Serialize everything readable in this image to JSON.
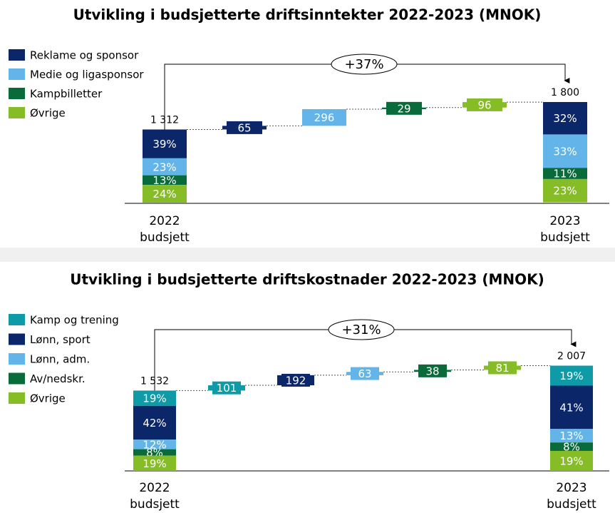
{
  "chart_data": [
    {
      "type": "waterfall",
      "title": "Utvikling i budsjetterte driftsinntekter 2022-2023 (MNOK)",
      "change_label": "+37%",
      "series": [
        {
          "name": "Reklame og sponsor",
          "color": "#0c2769",
          "step": 65
        },
        {
          "name": "Medie og ligasponsor",
          "color": "#63b4e8",
          "step": 296
        },
        {
          "name": "Kampbilletter",
          "color": "#0a6b3a",
          "step": 29
        },
        {
          "name": "Øvrige",
          "color": "#86bc25",
          "step": 96
        }
      ],
      "start": {
        "year": "2022",
        "label": "budsjett",
        "value": 1312,
        "value_label": "1 312",
        "shares": [
          39,
          23,
          13,
          24
        ],
        "share_labels": [
          "39%",
          "23%",
          "13%",
          "24%"
        ]
      },
      "end": {
        "year": "2023",
        "label": "budsjett",
        "value": 1800,
        "value_label": "1 800",
        "shares": [
          32,
          33,
          11,
          23
        ],
        "share_labels": [
          "32%",
          "33%",
          "11%",
          "23%"
        ]
      }
    },
    {
      "type": "waterfall",
      "title": "Utvikling i budsjetterte driftskostnader 2022-2023 (MNOK)",
      "change_label": "+31%",
      "series": [
        {
          "name": "Kamp og trening",
          "color": "#0e9aa7",
          "step": 101
        },
        {
          "name": "Lønn, sport",
          "color": "#0c2769",
          "step": 192
        },
        {
          "name": "Lønn, adm.",
          "color": "#63b4e8",
          "step": 63
        },
        {
          "name": "Av/nedskr.",
          "color": "#0a6b3a",
          "step": 38
        },
        {
          "name": "Øvrige",
          "color": "#86bc25",
          "step": 81
        }
      ],
      "start": {
        "year": "2022",
        "label": "budsjett",
        "value": 1532,
        "value_label": "1 532",
        "shares": [
          19,
          42,
          12,
          8,
          19
        ],
        "share_labels": [
          "19%",
          "42%",
          "12%",
          "8%",
          "19%"
        ]
      },
      "end": {
        "year": "2023",
        "label": "budsjett",
        "value": 2007,
        "value_label": "2 007",
        "shares": [
          19,
          41,
          13,
          8,
          19
        ],
        "share_labels": [
          "19%",
          "41%",
          "13%",
          "8%",
          "19%"
        ]
      }
    }
  ]
}
